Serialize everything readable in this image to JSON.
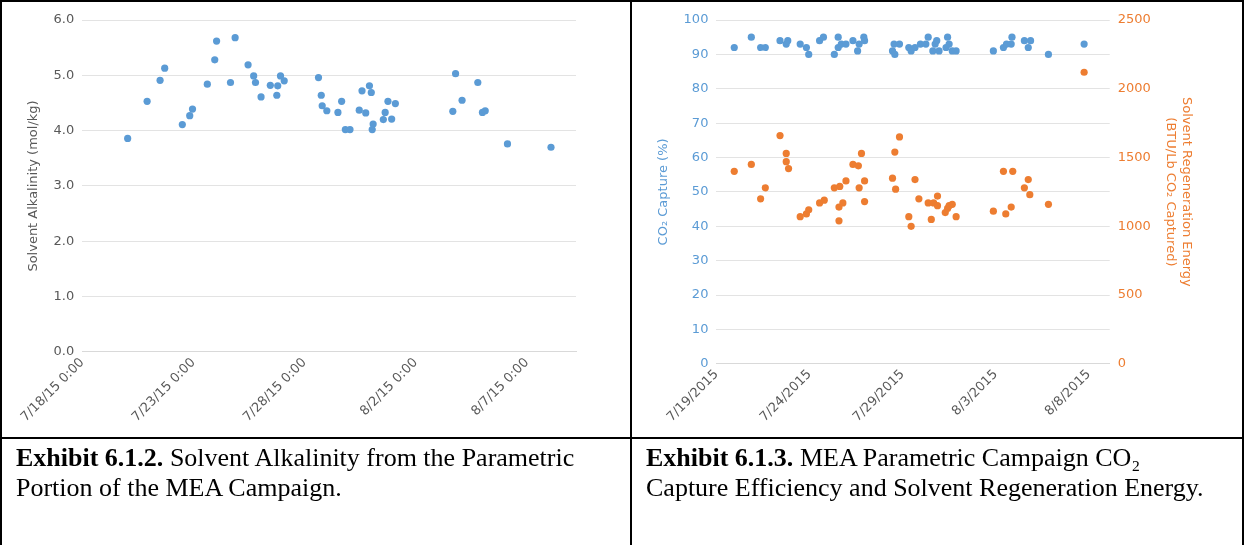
{
  "chart_data": [
    {
      "type": "scatter",
      "ylabel": "Solvent Alkalinity (mol/kg)",
      "marker": "circle",
      "grid": "y",
      "legend": false,
      "xlim": [
        "2015-07-18",
        "2015-08-09T05:00"
      ],
      "xticks": [
        {
          "value": "2015-07-18",
          "label": "7/18/15 0:00"
        },
        {
          "value": "2015-07-23",
          "label": "7/23/15 0:00"
        },
        {
          "value": "2015-07-28",
          "label": "7/28/15 0:00"
        },
        {
          "value": "2015-08-02",
          "label": "8/2/15 0:00"
        },
        {
          "value": "2015-08-07",
          "label": "8/7/15 0:00"
        }
      ],
      "ylim": [
        0,
        6
      ],
      "yticks": [
        {
          "value": 0,
          "label": "0.0"
        },
        {
          "value": 1,
          "label": "1.0"
        },
        {
          "value": 2,
          "label": "2.0"
        },
        {
          "value": 3,
          "label": "3.0"
        },
        {
          "value": 4,
          "label": "4.0"
        },
        {
          "value": 5,
          "label": "5.0"
        },
        {
          "value": 6,
          "label": "6.0"
        }
      ],
      "annotations": [
        "Exhibit 6.1.2. Solvent Alkalinity from the Parametric Portion of the MEA Campaign."
      ],
      "series": [
        {
          "color": "#5b9bd5",
          "x": [
            "2015-07-20T01:00",
            "2015-07-20T22:00",
            "2015-07-21T12:00",
            "2015-07-21T17:00",
            "2015-07-22T12:00",
            "2015-07-22T20:00",
            "2015-07-22T23:00",
            "2015-07-23T15:00",
            "2015-07-23T23:00",
            "2015-07-24T01:00",
            "2015-07-24T16:00",
            "2015-07-24T21:00",
            "2015-07-25T11:00",
            "2015-07-25T17:00",
            "2015-07-25T19:00",
            "2015-07-26T01:00",
            "2015-07-26T11:00",
            "2015-07-26T18:00",
            "2015-07-26T19:00",
            "2015-07-26T22:00",
            "2015-07-27T02:00",
            "2015-07-28T15:00",
            "2015-07-28T18:00",
            "2015-07-28T19:00",
            "2015-07-29T00:00",
            "2015-07-29T12:00",
            "2015-07-29T16:00",
            "2015-07-29T20:00",
            "2015-07-30T01:00",
            "2015-07-30T11:00",
            "2015-07-30T14:00",
            "2015-07-30T18:00",
            "2015-07-30T22:00",
            "2015-07-31T00:00",
            "2015-07-31T02:00",
            "2015-07-31T01:00",
            "2015-07-31T13:00",
            "2015-07-31T15:00",
            "2015-07-31T18:00",
            "2015-07-31T22:00",
            "2015-08-01T02:00",
            "2015-08-03T16:00",
            "2015-08-03T19:00",
            "2015-08-04T02:00",
            "2015-08-04T19:00",
            "2015-08-05T00:00",
            "2015-08-05T03:00",
            "2015-08-06T03:00",
            "2015-08-08T02:00"
          ],
          "values": [
            3.86,
            4.53,
            4.91,
            5.13,
            4.11,
            4.27,
            4.39,
            4.84,
            5.28,
            5.62,
            4.87,
            5.68,
            5.19,
            4.99,
            4.87,
            4.61,
            4.82,
            4.64,
            4.81,
            4.99,
            4.9,
            4.96,
            4.64,
            4.45,
            4.36,
            4.33,
            4.53,
            4.02,
            4.02,
            4.37,
            4.72,
            4.32,
            4.81,
            4.69,
            4.12,
            4.02,
            4.2,
            4.33,
            4.53,
            4.21,
            4.49,
            4.35,
            5.03,
            4.55,
            4.87,
            4.33,
            4.36,
            3.76,
            3.7
          ]
        }
      ]
    },
    {
      "type": "scatter",
      "ylabel": "CO₂ Capture (%)",
      "y2label": "Solvent Regeneration Energy\n(BTU/Lb CO₂ Captured)",
      "marker": "circle",
      "grid": "y",
      "legend": false,
      "xlim": [
        "2015-07-19",
        "2015-08-09T03:00"
      ],
      "xticks": [
        {
          "value": "2015-07-19",
          "label": "7/19/2015"
        },
        {
          "value": "2015-07-24",
          "label": "7/24/2015"
        },
        {
          "value": "2015-07-29",
          "label": "7/29/2015"
        },
        {
          "value": "2015-08-03",
          "label": "8/3/2015"
        },
        {
          "value": "2015-08-08",
          "label": "8/8/2015"
        }
      ],
      "ylim": [
        0,
        100
      ],
      "yticks": [
        0,
        10,
        20,
        30,
        40,
        50,
        60,
        70,
        80,
        90,
        100
      ],
      "y2lim": [
        0,
        2500
      ],
      "y2ticks": [
        0,
        500,
        1000,
        1500,
        2000,
        2500
      ],
      "annotations": [
        "Exhibit 6.1.3. MEA Parametric Campaign CO₂ Capture Efficiency and Solvent Regeneration Energy."
      ],
      "series": [
        {
          "color": "#5b9bd5",
          "x": [
            "2015-07-19T23:00",
            "2015-07-20T21:00",
            "2015-07-21T09:00",
            "2015-07-21T15:00",
            "2015-07-22T10:00",
            "2015-07-22T18:00",
            "2015-07-22T20:00",
            "2015-07-23T12:00",
            "2015-07-23T20:00",
            "2015-07-23T23:00",
            "2015-07-24T13:00",
            "2015-07-24T18:00",
            "2015-07-25T08:00",
            "2015-07-25T13:00",
            "2015-07-25T13:00",
            "2015-07-25T17:00",
            "2015-07-25T23:00",
            "2015-07-26T08:00",
            "2015-07-26T14:00",
            "2015-07-26T16:00",
            "2015-07-26T22:00",
            "2015-07-26T23:00",
            "2015-07-28T11:00",
            "2015-07-28T13:00",
            "2015-07-28T14:00",
            "2015-07-28T20:00",
            "2015-07-29T08:00",
            "2015-07-29T11:00",
            "2015-07-29T16:00",
            "2015-07-29T23:00",
            "2015-07-30T06:00",
            "2015-07-30T09:00",
            "2015-07-30T15:00",
            "2015-07-30T18:00",
            "2015-07-30T20:00",
            "2015-07-30T23:00",
            "2015-07-31T08:00",
            "2015-07-31T10:00",
            "2015-07-31T12:00",
            "2015-07-31T16:00",
            "2015-07-31T21:00",
            "2015-08-02T21:00",
            "2015-08-03T10:00",
            "2015-08-03T14:00",
            "2015-08-03T20:00",
            "2015-08-03T21:00",
            "2015-08-04T13:00",
            "2015-08-04T18:00",
            "2015-08-04T21:00",
            "2015-08-05T20:00",
            "2015-08-07T18:00"
          ],
          "values": [
            92,
            95,
            92,
            92,
            94,
            93,
            94,
            93,
            92,
            90,
            94,
            95,
            90,
            95,
            92,
            93,
            93,
            94,
            91,
            93,
            95,
            94,
            91,
            93,
            90,
            93,
            92,
            91,
            92,
            93,
            93,
            95,
            91,
            93,
            94,
            91,
            92,
            95,
            93,
            91,
            91,
            91,
            92,
            93,
            93,
            95,
            94,
            92,
            94,
            90,
            93
          ]
        },
        {
          "color": "#ed7d31",
          "axis": "y2",
          "x": [
            "2015-07-19T23:00",
            "2015-07-20T21:00",
            "2015-07-21T09:00",
            "2015-07-21T15:00",
            "2015-07-22T10:00",
            "2015-07-22T18:00",
            "2015-07-22T18:00",
            "2015-07-22T21:00",
            "2015-07-23T12:00",
            "2015-07-23T20:00",
            "2015-07-23T23:00",
            "2015-07-24T13:00",
            "2015-07-24T19:00",
            "2015-07-25T08:00",
            "2015-07-25T14:00",
            "2015-07-25T14:00",
            "2015-07-25T15:00",
            "2015-07-25T19:00",
            "2015-07-25T23:00",
            "2015-07-26T08:00",
            "2015-07-26T15:00",
            "2015-07-26T16:00",
            "2015-07-26T19:00",
            "2015-07-26T23:00",
            "2015-07-26T23:00",
            "2015-07-28T11:00",
            "2015-07-28T14:00",
            "2015-07-28T15:00",
            "2015-07-28T20:00",
            "2015-07-29T08:00",
            "2015-07-29T11:00",
            "2015-07-29T16:00",
            "2015-07-29T21:00",
            "2015-07-30T09:00",
            "2015-07-30T13:00",
            "2015-07-30T16:00",
            "2015-07-30T21:00",
            "2015-07-30T21:00",
            "2015-07-31T07:00",
            "2015-07-31T10:00",
            "2015-07-31T12:00",
            "2015-07-31T16:00",
            "2015-07-31T21:00",
            "2015-08-02T21:00",
            "2015-08-03T10:00",
            "2015-08-03T13:00",
            "2015-08-03T20:00",
            "2015-08-03T22:00",
            "2015-08-04T13:00",
            "2015-08-04T18:00",
            "2015-08-04T20:00",
            "2015-08-05T20:00",
            "2015-08-07T18:00"
          ],
          "values": [
            1400,
            1450,
            1200,
            1280,
            1660,
            1530,
            1470,
            1420,
            1070,
            1090,
            1120,
            1170,
            1190,
            1280,
            1140,
            1040,
            1290,
            1170,
            1330,
            1450,
            1440,
            1280,
            1530,
            1330,
            1180,
            1350,
            1540,
            1270,
            1650,
            1070,
            1000,
            1340,
            1200,
            1170,
            1050,
            1170,
            1220,
            1150,
            1100,
            1130,
            1150,
            1160,
            1070,
            1110,
            1400,
            1090,
            1140,
            1400,
            1280,
            1340,
            1230,
            1160,
            2120
          ]
        }
      ]
    }
  ]
}
